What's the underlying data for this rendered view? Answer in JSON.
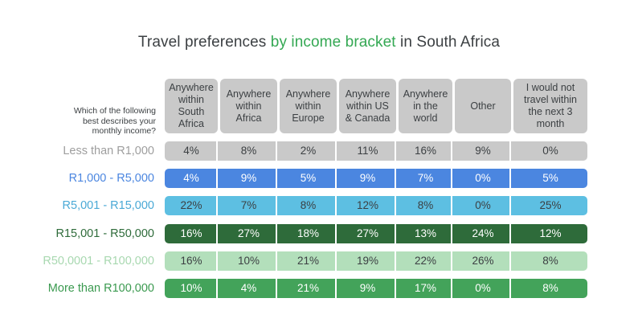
{
  "chart_data": {
    "type": "table",
    "title_parts": [
      "Travel preferences ",
      "by income bracket",
      " in South Africa"
    ],
    "row_header_question": "Which of the following best describes your monthly income?",
    "columns": [
      "Anywhere within South Africa",
      "Anywhere within Africa",
      "Anywhere within Europe",
      "Anywhere within US & Canada",
      "Anywhere in the world",
      "Other",
      "I would not travel within the next 3 month"
    ],
    "rows": [
      {
        "label": "Less than R1,000",
        "color": "#c9c9c9",
        "label_color": "#9e9e9e",
        "text_color": "#3c4043",
        "values": [
          "4%",
          "8%",
          "2%",
          "11%",
          "16%",
          "9%",
          "0%"
        ]
      },
      {
        "label": "R1,000 - R5,000",
        "color": "#4b86e0",
        "label_color": "#4b86e0",
        "text_color": "#ffffff",
        "values": [
          "4%",
          "9%",
          "5%",
          "9%",
          "7%",
          "0%",
          "5%"
        ]
      },
      {
        "label": "R5,001 - R15,000",
        "color": "#5dbfe2",
        "label_color": "#4aa9d6",
        "text_color": "#3c4043",
        "values": [
          "22%",
          "7%",
          "8%",
          "12%",
          "8%",
          "0%",
          "25%"
        ]
      },
      {
        "label": "R15,001 - R50,000",
        "color": "#2e6b3a",
        "label_color": "#2e6b3a",
        "text_color": "#ffffff",
        "values": [
          "16%",
          "27%",
          "18%",
          "27%",
          "13%",
          "24%",
          "12%"
        ]
      },
      {
        "label": "R50,0001 - R100,000",
        "color": "#b3dfbb",
        "label_color": "#a8d8b0",
        "text_color": "#3c4043",
        "values": [
          "16%",
          "10%",
          "21%",
          "19%",
          "22%",
          "26%",
          "8%"
        ]
      },
      {
        "label": "More than R100,000",
        "color": "#43a35a",
        "label_color": "#3b9a50",
        "text_color": "#ffffff",
        "values": [
          "10%",
          "4%",
          "21%",
          "9%",
          "17%",
          "0%",
          "8%"
        ]
      }
    ]
  }
}
